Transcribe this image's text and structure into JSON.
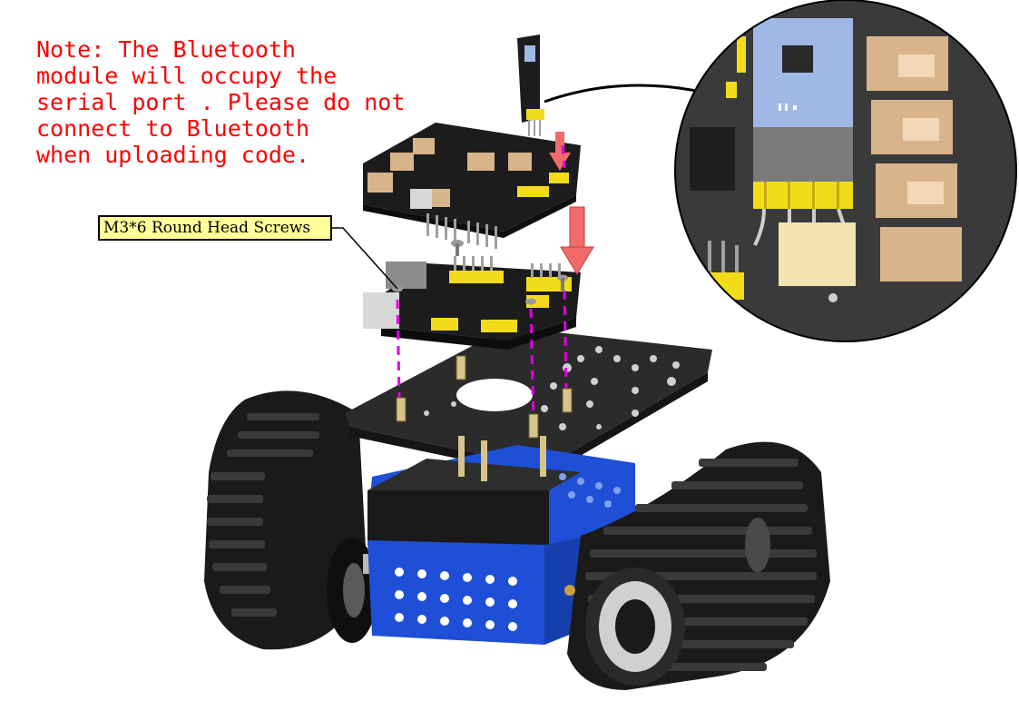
{
  "note": {
    "lines": [
      "Note: The Bluetooth",
      "module will occupy the",
      "serial port . Please do not",
      "connect to Bluetooth",
      "when uploading code."
    ],
    "color": "#ff0000"
  },
  "callout": {
    "label": "M3*6 Round Head Screws"
  },
  "colors": {
    "track": "#1a1a1a",
    "chassis_blue": "#1f4fd6",
    "plate": "#2b2b2b",
    "header_yellow": "#f2dc1a",
    "arrow": "#f26a6a",
    "guide": "#e000e0",
    "bluetooth_module": "#9fb8e6",
    "pcb": "#1c1c1c",
    "connector_tan": "#d9b48a"
  }
}
